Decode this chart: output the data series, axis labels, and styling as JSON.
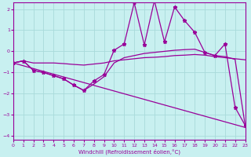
{
  "xlabel": "Windchill (Refroidissement éolien,°C)",
  "background_color": "#c8f0f0",
  "grid_color": "#a8dada",
  "line_color": "#990099",
  "xlim": [
    0,
    23
  ],
  "ylim": [
    -4.2,
    2.3
  ],
  "xticks": [
    0,
    1,
    2,
    3,
    4,
    5,
    6,
    7,
    8,
    9,
    10,
    11,
    12,
    13,
    14,
    15,
    16,
    17,
    18,
    19,
    20,
    21,
    22,
    23
  ],
  "yticks": [
    -4,
    -3,
    -2,
    -1,
    0,
    1,
    2
  ],
  "series": {
    "flat_line": {
      "x": [
        0,
        1,
        2,
        3,
        4,
        5,
        6,
        7,
        8,
        9,
        10,
        11,
        12,
        13,
        14,
        15,
        16,
        17,
        18,
        19,
        20,
        21,
        22,
        23
      ],
      "y": [
        -0.55,
        -0.45,
        -0.55,
        -0.55,
        -0.55,
        -0.58,
        -0.62,
        -0.65,
        -0.6,
        -0.55,
        -0.45,
        -0.4,
        -0.35,
        -0.3,
        -0.28,
        -0.25,
        -0.2,
        -0.18,
        -0.15,
        -0.18,
        -0.25,
        -0.3,
        -0.35,
        -0.4
      ]
    },
    "smooth_curve": {
      "x": [
        0,
        1,
        2,
        3,
        4,
        5,
        6,
        7,
        8,
        9,
        10,
        11,
        12,
        13,
        14,
        15,
        16,
        17,
        18,
        19,
        20,
        21,
        22,
        23
      ],
      "y": [
        -0.55,
        -0.45,
        -0.9,
        -1.0,
        -1.15,
        -1.3,
        -1.6,
        -1.85,
        -1.55,
        -1.2,
        -0.55,
        -0.3,
        -0.2,
        -0.1,
        -0.05,
        0.0,
        0.05,
        0.08,
        0.1,
        -0.05,
        -0.2,
        -0.25,
        -0.38,
        -3.5
      ]
    },
    "jagged_markers": {
      "x": [
        0,
        1,
        2,
        3,
        4,
        5,
        6,
        7,
        8,
        9,
        10,
        11,
        12,
        13,
        14,
        15,
        16,
        17,
        18,
        19,
        20,
        21,
        22,
        23
      ],
      "y": [
        -0.55,
        -0.45,
        -0.9,
        -1.0,
        -1.15,
        -1.3,
        -1.6,
        -1.85,
        -1.4,
        -1.1,
        0.05,
        0.35,
        2.3,
        0.3,
        2.4,
        0.45,
        2.1,
        1.45,
        0.9,
        -0.05,
        -0.2,
        0.35,
        -2.65,
        -3.5
      ]
    },
    "diagonal": {
      "x": [
        0,
        23
      ],
      "y": [
        -0.55,
        -3.6
      ]
    }
  }
}
